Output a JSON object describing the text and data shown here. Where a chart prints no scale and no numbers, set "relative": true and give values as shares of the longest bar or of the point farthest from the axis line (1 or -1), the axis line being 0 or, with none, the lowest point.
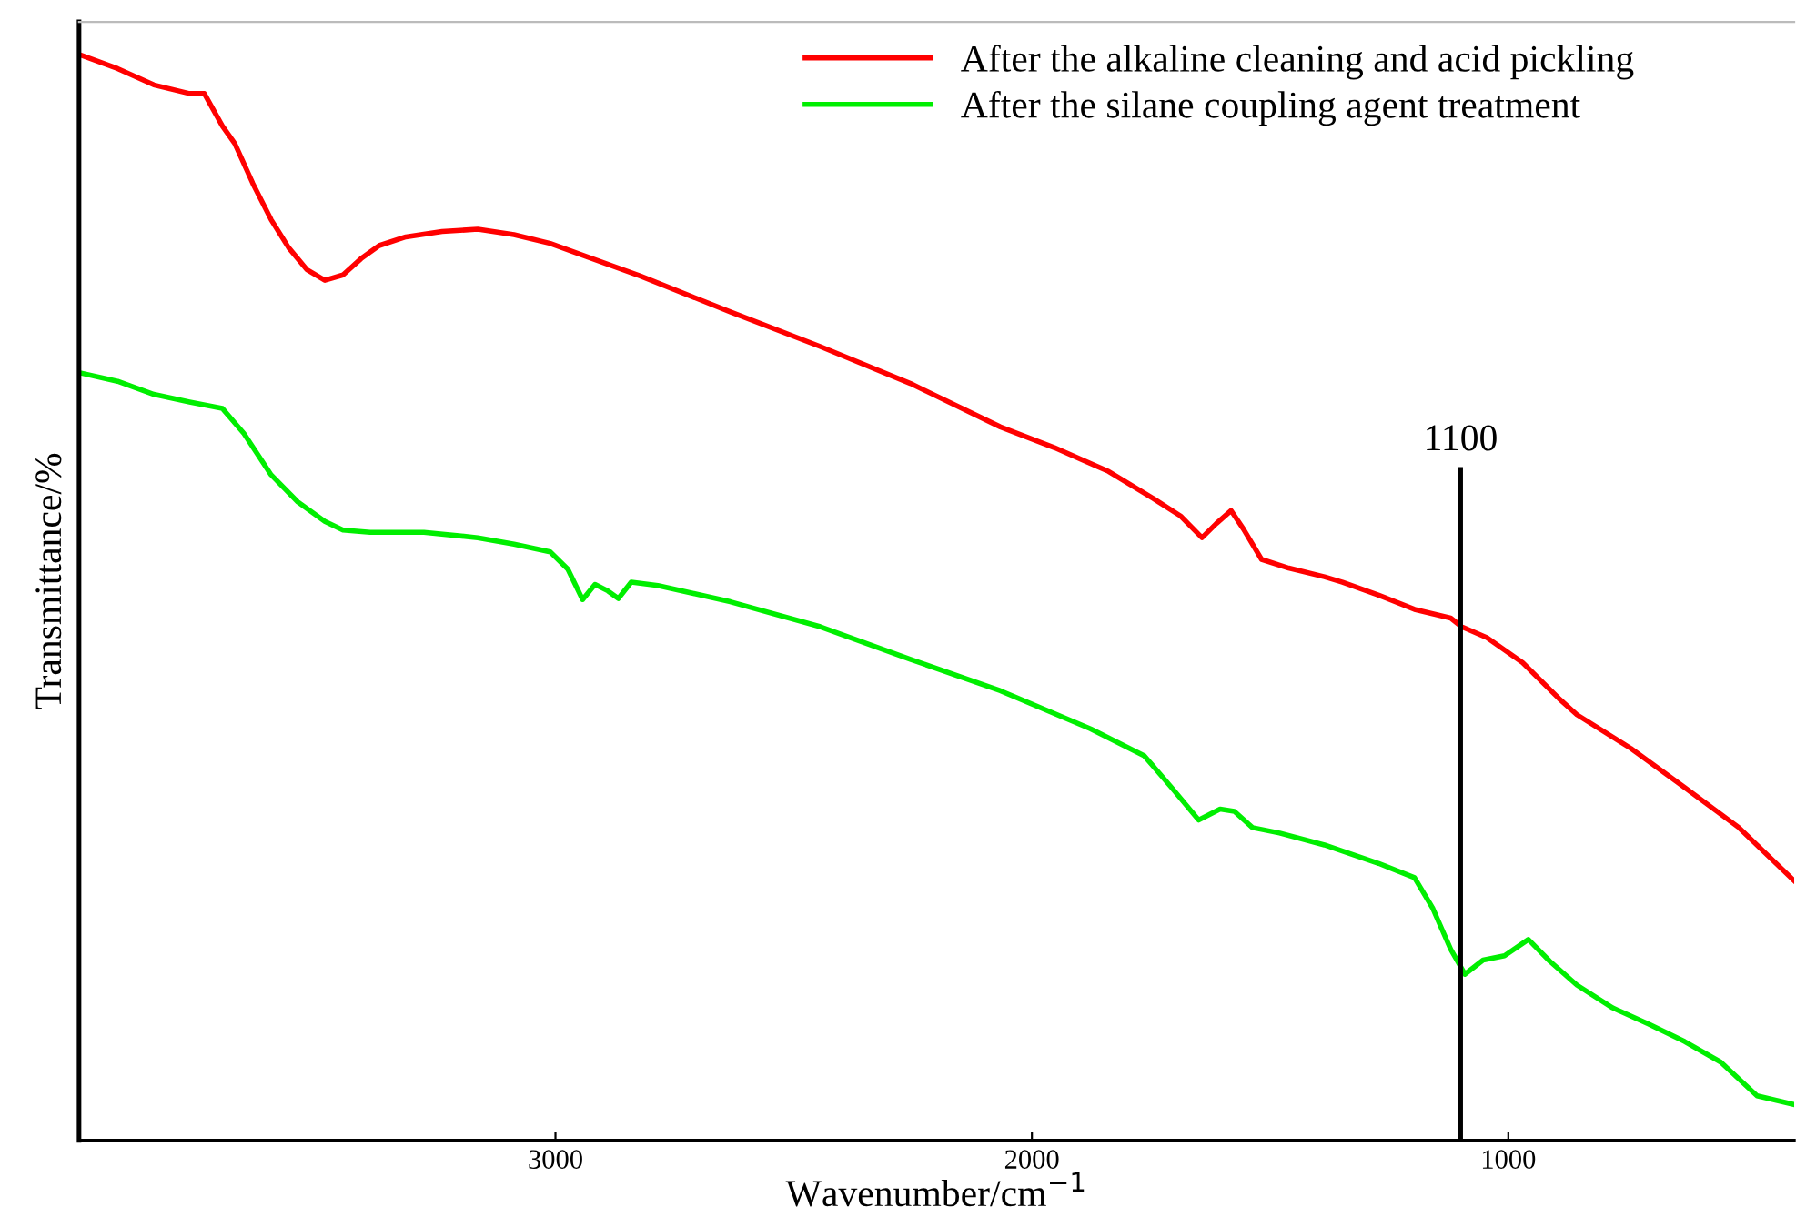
{
  "chart_data": {
    "type": "line",
    "xlabel": "Wavenumber/cm$^{−1}$",
    "ylabel": "Transmittance/%",
    "relative": true,
    "xlim": [
      4000,
      400
    ],
    "xticks": [
      3000,
      2000,
      1000
    ],
    "legend": "top right",
    "grid": false,
    "ref_lines": [
      {
        "axis": "x",
        "value": 1100,
        "label": "1100",
        "color": "#000000"
      }
    ],
    "series": [
      {
        "name": "After the alkaline cleaning and acid pickling",
        "color": "#ff0000",
        "x": [
          4000,
          3919,
          3843,
          3768,
          3737,
          3699,
          3673,
          3635,
          3597,
          3560,
          3522,
          3484,
          3446,
          3408,
          3370,
          3314,
          3238,
          3163,
          3087,
          3011,
          2936,
          2822,
          2633,
          2444,
          2255,
          2066,
          1953,
          1839,
          1745,
          1688,
          1643,
          1613,
          1582,
          1556,
          1518,
          1461,
          1386,
          1348,
          1272,
          1197,
          1121,
          1098,
          1045,
          970,
          894,
          856,
          743,
          630,
          516,
          400
        ],
        "values": [
          1.0,
          0.987,
          0.972,
          0.964,
          0.964,
          0.934,
          0.918,
          0.881,
          0.848,
          0.822,
          0.802,
          0.792,
          0.797,
          0.812,
          0.824,
          0.832,
          0.837,
          0.839,
          0.834,
          0.826,
          0.814,
          0.796,
          0.763,
          0.731,
          0.697,
          0.657,
          0.638,
          0.616,
          0.591,
          0.575,
          0.555,
          0.568,
          0.58,
          0.563,
          0.535,
          0.527,
          0.519,
          0.514,
          0.502,
          0.489,
          0.481,
          0.473,
          0.463,
          0.44,
          0.407,
          0.392,
          0.361,
          0.325,
          0.288,
          0.239
        ]
      },
      {
        "name": "After the silane coupling agent treatment",
        "color": "#00ee00",
        "x": [
          4000,
          3919,
          3843,
          3768,
          3699,
          3654,
          3597,
          3541,
          3484,
          3446,
          3389,
          3276,
          3163,
          3087,
          3011,
          2974,
          2943,
          2917,
          2890,
          2868,
          2841,
          2785,
          2633,
          2444,
          2255,
          2066,
          1877,
          1764,
          1707,
          1650,
          1605,
          1575,
          1537,
          1480,
          1386,
          1272,
          1197,
          1159,
          1121,
          1091,
          1053,
          1008,
          958,
          913,
          856,
          781,
          705,
          630,
          554,
          478,
          400
        ],
        "values": [
          0.707,
          0.699,
          0.687,
          0.68,
          0.674,
          0.651,
          0.613,
          0.588,
          0.57,
          0.562,
          0.56,
          0.56,
          0.555,
          0.549,
          0.542,
          0.526,
          0.498,
          0.512,
          0.506,
          0.499,
          0.514,
          0.511,
          0.496,
          0.473,
          0.443,
          0.414,
          0.379,
          0.354,
          0.325,
          0.295,
          0.305,
          0.303,
          0.288,
          0.283,
          0.272,
          0.255,
          0.242,
          0.214,
          0.176,
          0.153,
          0.166,
          0.17,
          0.185,
          0.165,
          0.143,
          0.122,
          0.107,
          0.091,
          0.072,
          0.041,
          0.033
        ]
      }
    ]
  }
}
